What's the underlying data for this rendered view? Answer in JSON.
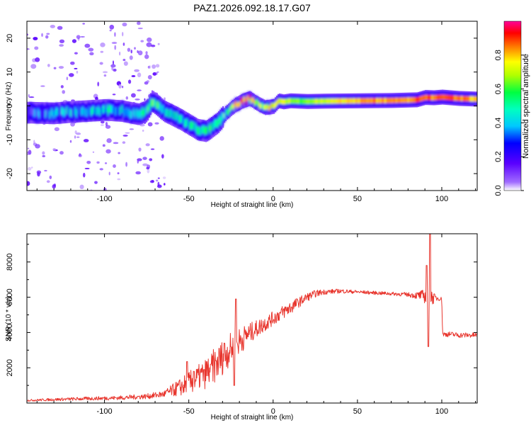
{
  "chart_data": [
    {
      "type": "heatmap",
      "title": "PAZ1.2026.092.18.17.G07",
      "xlabel": "Height of straight line (km)",
      "ylabel": "Frequency (Hz)",
      "xlim": [
        -146,
        121
      ],
      "ylim": [
        -25,
        25
      ],
      "xticks": [
        -100,
        -50,
        0,
        50,
        100
      ],
      "xtick_labels": [
        "-100",
        "-50",
        "0",
        "50",
        "100"
      ],
      "yticks": [
        -20,
        -10,
        0,
        10,
        20
      ],
      "ytick_labels": [
        "-20",
        "-10",
        "0",
        "10",
        "20"
      ],
      "colorbar": {
        "label": "Normalized spectral amplitude",
        "range": [
          0,
          1
        ],
        "ticks": [
          0.0,
          0.2,
          0.4,
          0.6,
          0.8
        ],
        "tick_labels": [
          "0.0",
          "0.2",
          "0.4",
          "0.6",
          "0.8"
        ],
        "colors": [
          "#ffffff",
          "#7a00ff",
          "#0000ff",
          "#00e5ff",
          "#00ff66",
          "#ffff00",
          "#ff6600",
          "#ff0000",
          "#ff0099"
        ]
      },
      "ridge": {
        "x": [
          -144,
          -130,
          -120,
          -110,
          -100,
          -90,
          -80,
          -75,
          -72,
          -65,
          -55,
          -50,
          -45,
          -40,
          -37,
          -33,
          -28,
          -22,
          -18,
          -14,
          -10,
          -5,
          0,
          3,
          6,
          10,
          20,
          30,
          50,
          70,
          85,
          90,
          95,
          100,
          110,
          121
        ],
        "y": [
          -2,
          -2.2,
          -1.8,
          -1.5,
          -1.2,
          -1.5,
          -2.5,
          -1.5,
          1.5,
          -1.5,
          -4,
          -5.5,
          -7,
          -7.5,
          -6.5,
          -5,
          -2,
          0.5,
          1.5,
          2.2,
          0.8,
          -0.5,
          -0.2,
          1.5,
          1.2,
          1.5,
          1.3,
          1.4,
          1.5,
          1.6,
          1.8,
          2.5,
          2.4,
          2.6,
          2.2,
          2.0
        ],
        "amplitude": [
          0.25,
          0.3,
          0.35,
          0.38,
          0.4,
          0.38,
          0.35,
          0.45,
          0.6,
          0.4,
          0.4,
          0.42,
          0.45,
          0.45,
          0.45,
          0.5,
          0.55,
          0.75,
          0.8,
          0.8,
          0.7,
          0.6,
          0.8,
          0.75,
          0.7,
          0.65,
          0.65,
          0.7,
          0.8,
          0.85,
          0.85,
          0.9,
          0.85,
          0.9,
          0.85,
          0.8
        ]
      }
    },
    {
      "type": "line",
      "xlabel": "Height of straight line (km)",
      "ylabel": "SNR (10 * v/v)",
      "xlim": [
        -146,
        121
      ],
      "ylim": [
        0,
        9600
      ],
      "xticks": [
        -100,
        -50,
        0,
        50,
        100
      ],
      "xtick_labels": [
        "-100",
        "-50",
        "0",
        "50",
        "100"
      ],
      "yticks": [
        2000,
        4000,
        6000,
        8000
      ],
      "ytick_labels": [
        "2000",
        "4000",
        "6000",
        "8000"
      ],
      "series": [
        {
          "name": "SNR",
          "color": "#e8362e",
          "x": [
            -146,
            -130,
            -110,
            -90,
            -75,
            -65,
            -60,
            -55,
            -50,
            -45,
            -40,
            -35,
            -30,
            -25,
            -20,
            -15,
            -10,
            -5,
            0,
            5,
            10,
            15,
            20,
            25,
            30,
            40,
            50,
            60,
            70,
            80,
            85,
            88,
            90,
            92,
            93,
            94,
            96,
            98,
            100,
            100.5,
            105,
            110,
            121
          ],
          "y": [
            150,
            200,
            250,
            300,
            380,
            500,
            700,
            900,
            1100,
            1400,
            1700,
            2100,
            2600,
            3100,
            3500,
            3900,
            4200,
            4500,
            4800,
            5100,
            5400,
            5700,
            6000,
            6200,
            6300,
            6350,
            6300,
            6250,
            6200,
            6150,
            6100,
            6100,
            6050,
            6050,
            6000,
            6000,
            5950,
            5950,
            5900,
            3900,
            3900,
            3850,
            3850
          ],
          "noise": [
            50,
            80,
            100,
            120,
            150,
            200,
            350,
            500,
            700,
            700,
            900,
            1000,
            1000,
            900,
            800,
            600,
            500,
            450,
            400,
            400,
            400,
            300,
            250,
            200,
            150,
            120,
            100,
            100,
            100,
            120,
            200,
            300,
            400,
            600,
            800,
            500,
            200,
            150,
            100,
            150,
            150,
            150,
            150
          ],
          "spikes": [
            {
              "x": -51,
              "y": 2350
            },
            {
              "x": -47,
              "y": 1800
            },
            {
              "x": -41,
              "y": 1900
            },
            {
              "x": -37,
              "y": 2200
            },
            {
              "x": -34,
              "y": 2400
            },
            {
              "x": -32,
              "y": 3100
            },
            {
              "x": -29,
              "y": 3400
            },
            {
              "x": -23,
              "y": 1000
            },
            {
              "x": -22,
              "y": 5900
            },
            {
              "x": 91,
              "y": 7800
            },
            {
              "x": 92,
              "y": 3200
            },
            {
              "x": 93,
              "y": 9600
            }
          ]
        }
      ]
    }
  ]
}
